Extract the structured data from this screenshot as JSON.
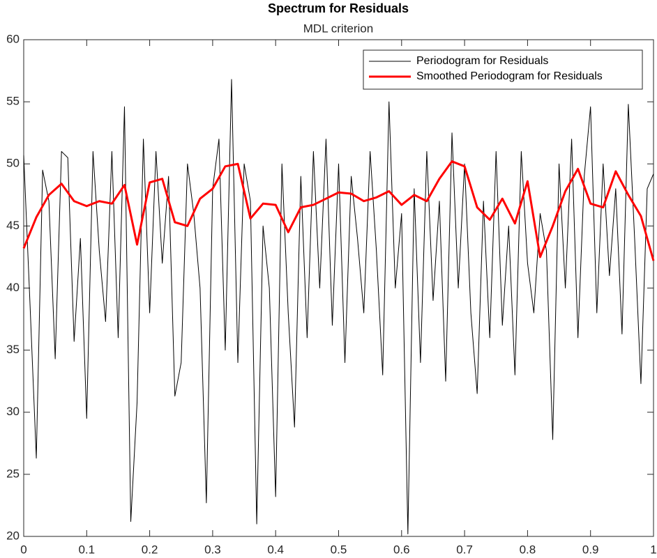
{
  "chart_data": {
    "type": "line",
    "title": "Spectrum for Residuals",
    "subtitle": "MDL criterion",
    "xlim": [
      0,
      1
    ],
    "xticks": [
      0,
      0.1,
      0.2,
      0.3,
      0.4,
      0.5,
      0.6,
      0.7,
      0.8,
      0.9,
      1
    ],
    "ylim": [
      20,
      60
    ],
    "yticks": [
      20,
      25,
      30,
      35,
      40,
      45,
      50,
      55,
      60
    ],
    "grid": false,
    "legend": "northeast",
    "series": [
      {
        "name": "Periodogram for Residuals",
        "color": "#000000",
        "line_width": 1,
        "x": [
          0,
          0.01,
          0.02,
          0.03,
          0.04,
          0.05,
          0.06,
          0.07,
          0.08,
          0.09,
          0.1,
          0.11,
          0.12,
          0.13,
          0.14,
          0.15,
          0.16,
          0.17,
          0.18,
          0.19,
          0.2,
          0.21,
          0.22,
          0.23,
          0.24,
          0.25,
          0.26,
          0.27,
          0.28,
          0.29,
          0.3,
          0.31,
          0.32,
          0.33,
          0.34,
          0.35,
          0.36,
          0.37,
          0.38,
          0.39,
          0.4,
          0.41,
          0.42,
          0.43,
          0.44,
          0.45,
          0.46,
          0.47,
          0.48,
          0.49,
          0.5,
          0.51,
          0.52,
          0.53,
          0.54,
          0.55,
          0.56,
          0.57,
          0.58,
          0.59,
          0.6,
          0.61,
          0.62,
          0.63,
          0.64,
          0.65,
          0.66,
          0.67,
          0.68,
          0.69,
          0.7,
          0.71,
          0.72,
          0.73,
          0.74,
          0.75,
          0.76,
          0.77,
          0.78,
          0.79,
          0.8,
          0.81,
          0.82,
          0.83,
          0.84,
          0.85,
          0.86,
          0.87,
          0.88,
          0.89,
          0.9,
          0.91,
          0.92,
          0.93,
          0.94,
          0.95,
          0.96,
          0.97,
          0.98,
          0.99,
          1
        ],
        "values": [
          50.7,
          38.7,
          26.3,
          49.5,
          47,
          34.3,
          51,
          50.5,
          35.7,
          44,
          29.5,
          51,
          43,
          37.3,
          51,
          36,
          54.6,
          21.2,
          30.8,
          52,
          38,
          51,
          42,
          49,
          31.3,
          34,
          50,
          46,
          40,
          22.7,
          48,
          52,
          35,
          56.8,
          34,
          50,
          47,
          21,
          45,
          40,
          23.2,
          50,
          38,
          28.8,
          49,
          36,
          51,
          40,
          52,
          37,
          50,
          34,
          49,
          44,
          38,
          51,
          43,
          33,
          55,
          40,
          46,
          20.2,
          48,
          34,
          51,
          39,
          47,
          32.5,
          52.5,
          40,
          50,
          38,
          31.5,
          47,
          36,
          51,
          37,
          45,
          33,
          51,
          42,
          38,
          46,
          43,
          27.8,
          50,
          40,
          52,
          36,
          49,
          54.6,
          38,
          50,
          41,
          48,
          36.3,
          54.8,
          44,
          32.3,
          48,
          49.2
        ]
      },
      {
        "name": "Smoothed Periodogram for Residuals",
        "color": "#ff0000",
        "line_width": 3,
        "x": [
          0,
          0.02,
          0.04,
          0.06,
          0.08,
          0.1,
          0.12,
          0.14,
          0.16,
          0.18,
          0.2,
          0.22,
          0.24,
          0.26,
          0.28,
          0.3,
          0.32,
          0.34,
          0.36,
          0.38,
          0.4,
          0.42,
          0.44,
          0.46,
          0.48,
          0.5,
          0.52,
          0.54,
          0.56,
          0.58,
          0.6,
          0.62,
          0.64,
          0.66,
          0.68,
          0.7,
          0.72,
          0.74,
          0.76,
          0.78,
          0.8,
          0.82,
          0.84,
          0.86,
          0.88,
          0.9,
          0.92,
          0.94,
          0.96,
          0.98,
          1
        ],
        "values": [
          43.2,
          45.7,
          47.5,
          48.4,
          47,
          46.6,
          47,
          46.8,
          48.3,
          43.5,
          48.5,
          48.8,
          45.3,
          45,
          47.2,
          48,
          49.8,
          50,
          45.6,
          46.8,
          46.7,
          44.5,
          46.5,
          46.7,
          47.2,
          47.7,
          47.6,
          47,
          47.3,
          47.8,
          46.7,
          47.5,
          47,
          48.8,
          50.2,
          49.8,
          46.5,
          45.5,
          47.2,
          45.2,
          48.6,
          42.5,
          45,
          47.8,
          49.6,
          46.8,
          46.5,
          49.4,
          47.5,
          45.8,
          42.2
        ]
      }
    ]
  }
}
